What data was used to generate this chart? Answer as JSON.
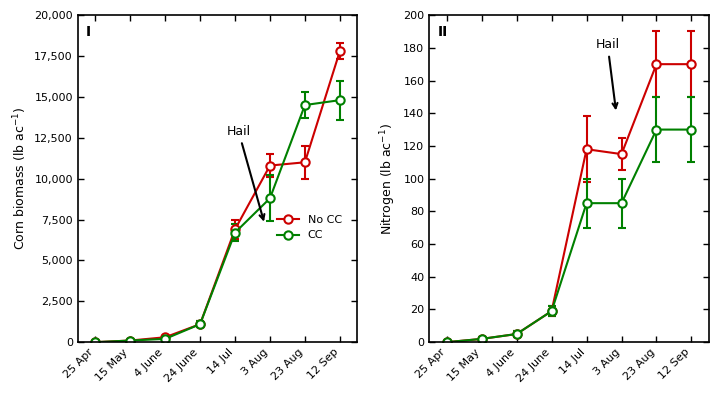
{
  "x_labels": [
    "25 Apr",
    "15 May",
    "4 June",
    "24 June",
    "14 Jul",
    "3 Aug",
    "23 Aug",
    "12 Sep"
  ],
  "x_positions": [
    0,
    1,
    2,
    3,
    4,
    5,
    6,
    7
  ],
  "biomass_nocc_y": [
    0,
    100,
    300,
    1100,
    6900,
    10800,
    11000,
    17800
  ],
  "biomass_nocc_err": [
    0,
    50,
    100,
    200,
    600,
    700,
    1000,
    500
  ],
  "biomass_cc_y": [
    0,
    100,
    200,
    1100,
    6700,
    8800,
    14500,
    14800
  ],
  "biomass_cc_err": [
    0,
    50,
    100,
    200,
    500,
    1400,
    800,
    1200
  ],
  "nitrogen_nocc_y": [
    0,
    2,
    5,
    19,
    118,
    115,
    170,
    170
  ],
  "nitrogen_nocc_err": [
    0,
    1,
    2,
    3,
    20,
    10,
    20,
    20
  ],
  "nitrogen_cc_y": [
    0,
    2,
    5,
    19,
    85,
    85,
    130,
    130
  ],
  "nitrogen_cc_err": [
    0,
    1,
    2,
    3,
    15,
    15,
    20,
    20
  ],
  "color_nocc": "#cc0000",
  "color_cc": "#008000",
  "panel1_ylabel": "Corn biomass (lb ac$^{-1}$)",
  "panel2_ylabel": "Nitrogen (lb ac$^{-1}$)",
  "panel1_ylim": [
    0,
    20000
  ],
  "panel2_ylim": [
    0,
    200
  ],
  "panel1_yticks": [
    0,
    2500,
    5000,
    7500,
    10000,
    12500,
    15000,
    17500,
    20000
  ],
  "panel2_yticks": [
    0,
    20,
    40,
    60,
    80,
    100,
    120,
    140,
    160,
    180,
    200
  ],
  "panel1_label": "I",
  "panel2_label": "II",
  "legend_labels": [
    "No CC",
    "CC"
  ]
}
